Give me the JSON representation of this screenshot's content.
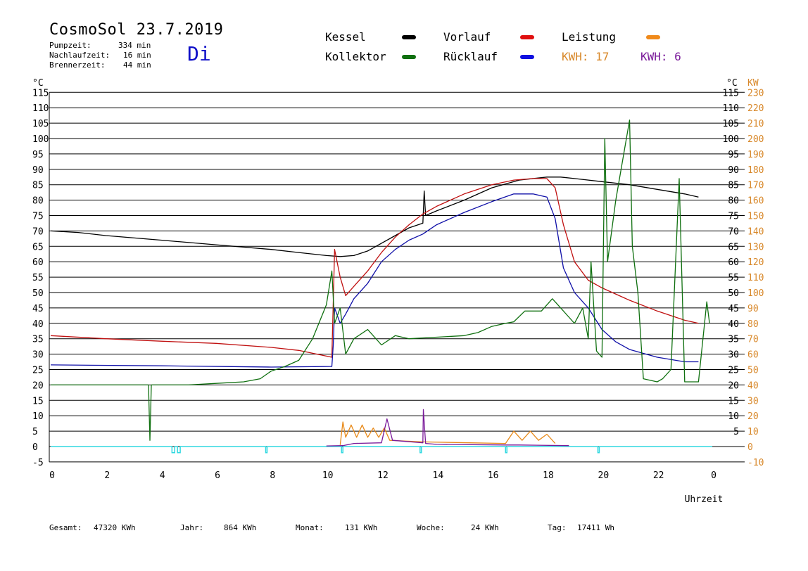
{
  "header": {
    "title": "CosmoSol 23.7.2019",
    "day": "Di",
    "stats": [
      {
        "label": "Pumpzeit:",
        "value": "334 min"
      },
      {
        "label": "Nachlaufzeit:",
        "value": "16 min"
      },
      {
        "label": "Brennerzeit:",
        "value": "44 min"
      }
    ]
  },
  "legend": {
    "kessel": "Kessel",
    "kollektor": "Kollektor",
    "vorlauf": "Vorlauf",
    "ruecklauf": "Rücklauf",
    "leistung": "Leistung",
    "kwh1": "KWH: 17",
    "kwh2": "KWH: 6"
  },
  "colors": {
    "kessel": "#000000",
    "kollektor": "#107010",
    "vorlauf": "#c01010",
    "ruecklauf": "#1010a8",
    "leistung": "#e88a1a",
    "purple": "#7a1a9a",
    "pump": "#30d8e0",
    "orange_text": "#d8882a"
  },
  "footer": [
    {
      "label": "Gesamt:",
      "value": "47320 KWh"
    },
    {
      "label": "Jahr:",
      "value": "864 KWh"
    },
    {
      "label": "Monat:",
      "value": "131 KWh"
    },
    {
      "label": "Woche:",
      "value": "24 KWh"
    },
    {
      "label": "Tag:",
      "value": "17411 Wh"
    }
  ],
  "chart_data": {
    "type": "line",
    "title": "CosmoSol 23.7.2019",
    "xlabel": "Uhrzeit",
    "ylabel_left": "°C",
    "ylabel_right_temp": "°C",
    "ylabel_right_power": "KW",
    "xlim": [
      0,
      24
    ],
    "ylim": [
      -5,
      115
    ],
    "y2lim": [
      -10,
      230
    ],
    "x_ticks": [
      "0",
      "2",
      "4",
      "6",
      "8",
      "10",
      "12",
      "14",
      "16",
      "18",
      "20",
      "22",
      "0"
    ],
    "y_ticks_left": [
      "-5",
      "0",
      "5",
      "10",
      "15",
      "20",
      "25",
      "30",
      "35",
      "40",
      "45",
      "50",
      "55",
      "60",
      "65",
      "70",
      "75",
      "80",
      "85",
      "90",
      "95",
      "100",
      "105",
      "110",
      "115"
    ],
    "y_ticks_right_temp": [
      "5",
      "10",
      "15",
      "20",
      "25",
      "30",
      "35",
      "40",
      "45",
      "50",
      "55",
      "60",
      "65",
      "70",
      "75",
      "80",
      "85",
      "90",
      "95",
      "100",
      "105",
      "110",
      "115"
    ],
    "y_ticks_right_power": [
      "-10",
      "0",
      "10",
      "20",
      "30",
      "40",
      "50",
      "60",
      "70",
      "80",
      "90",
      "100",
      "110",
      "120",
      "130",
      "140",
      "150",
      "160",
      "170",
      "180",
      "190",
      "200",
      "210",
      "220",
      "230"
    ],
    "grid": "horizontal",
    "series": [
      {
        "name": "Kessel",
        "color": "#000000",
        "points": [
          [
            0,
            70
          ],
          [
            1,
            69.5
          ],
          [
            2,
            68.5
          ],
          [
            4,
            67
          ],
          [
            6,
            65.5
          ],
          [
            8,
            64
          ],
          [
            9,
            63
          ],
          [
            10,
            62
          ],
          [
            10.5,
            61.7
          ],
          [
            11,
            62
          ],
          [
            11.5,
            63.5
          ],
          [
            12,
            66
          ],
          [
            12.5,
            68.5
          ],
          [
            13,
            71
          ],
          [
            13.5,
            72.5
          ],
          [
            13.55,
            83
          ],
          [
            13.6,
            75
          ],
          [
            14,
            76.5
          ],
          [
            15,
            80
          ],
          [
            16,
            84
          ],
          [
            17,
            86.5
          ],
          [
            18,
            87.5
          ],
          [
            18.5,
            87.5
          ],
          [
            19,
            87
          ],
          [
            20,
            86
          ],
          [
            21,
            85
          ],
          [
            22,
            83.5
          ],
          [
            23,
            82
          ],
          [
            23.5,
            81
          ]
        ]
      },
      {
        "name": "Vorlauf",
        "color": "#c01010",
        "points": [
          [
            0,
            36
          ],
          [
            2,
            35
          ],
          [
            4,
            34.2
          ],
          [
            6,
            33.5
          ],
          [
            8,
            32.2
          ],
          [
            9,
            31.2
          ],
          [
            10.2,
            29
          ],
          [
            10.3,
            64
          ],
          [
            10.5,
            55
          ],
          [
            10.7,
            49
          ],
          [
            11,
            52
          ],
          [
            11.5,
            57
          ],
          [
            12,
            63
          ],
          [
            12.5,
            68
          ],
          [
            13,
            72
          ],
          [
            13.5,
            75.5
          ],
          [
            14,
            78
          ],
          [
            15,
            82
          ],
          [
            16,
            85
          ],
          [
            16.8,
            86.5
          ],
          [
            17.5,
            87
          ],
          [
            18,
            87
          ],
          [
            18.3,
            84
          ],
          [
            18.6,
            72
          ],
          [
            19,
            60
          ],
          [
            19.5,
            54
          ],
          [
            20,
            51.5
          ],
          [
            21,
            47.5
          ],
          [
            22,
            44
          ],
          [
            23,
            41
          ],
          [
            23.5,
            40
          ]
        ]
      },
      {
        "name": "Rücklauf",
        "color": "#1010a8",
        "points": [
          [
            0,
            26.5
          ],
          [
            4,
            26.2
          ],
          [
            8,
            25.8
          ],
          [
            10.2,
            26
          ],
          [
            10.25,
            33
          ],
          [
            10.3,
            45
          ],
          [
            10.5,
            40
          ],
          [
            10.7,
            43
          ],
          [
            11,
            48
          ],
          [
            11.5,
            53
          ],
          [
            12,
            60
          ],
          [
            12.5,
            64
          ],
          [
            13,
            67
          ],
          [
            13.5,
            69
          ],
          [
            14,
            72
          ],
          [
            15,
            76
          ],
          [
            16,
            79.5
          ],
          [
            16.8,
            82
          ],
          [
            17.5,
            82
          ],
          [
            18,
            81
          ],
          [
            18.3,
            74
          ],
          [
            18.6,
            58
          ],
          [
            19,
            50
          ],
          [
            19.5,
            45
          ],
          [
            20,
            38
          ],
          [
            20.5,
            34
          ],
          [
            21,
            31.5
          ],
          [
            22,
            29
          ],
          [
            23,
            27.5
          ],
          [
            23.5,
            27.5
          ]
        ]
      },
      {
        "name": "Kollektor",
        "color": "#107010",
        "points": [
          [
            0,
            20
          ],
          [
            3.55,
            20
          ],
          [
            3.6,
            2
          ],
          [
            3.65,
            20
          ],
          [
            5,
            20
          ],
          [
            6,
            20.5
          ],
          [
            7,
            21
          ],
          [
            7.6,
            22
          ],
          [
            8,
            24.5
          ],
          [
            8.5,
            26
          ],
          [
            9,
            28
          ],
          [
            9.5,
            35
          ],
          [
            10,
            46
          ],
          [
            10.2,
            57
          ],
          [
            10.3,
            40
          ],
          [
            10.5,
            45
          ],
          [
            10.7,
            30
          ],
          [
            11,
            35
          ],
          [
            11.5,
            38
          ],
          [
            12,
            33
          ],
          [
            12.5,
            36
          ],
          [
            13,
            35
          ],
          [
            14,
            35.5
          ],
          [
            15,
            36
          ],
          [
            15.5,
            37
          ],
          [
            16,
            39
          ],
          [
            16.5,
            40
          ],
          [
            16.8,
            40.5
          ],
          [
            17.2,
            44
          ],
          [
            17.8,
            44
          ],
          [
            18.2,
            48
          ],
          [
            18.5,
            45
          ],
          [
            18.8,
            42
          ],
          [
            19,
            40
          ],
          [
            19.3,
            45
          ],
          [
            19.5,
            35
          ],
          [
            19.6,
            60
          ],
          [
            19.8,
            31
          ],
          [
            20,
            29
          ],
          [
            20.1,
            100
          ],
          [
            20.2,
            60
          ],
          [
            20.5,
            80
          ],
          [
            21,
            106
          ],
          [
            21.1,
            65
          ],
          [
            21.3,
            50
          ],
          [
            21.5,
            22
          ],
          [
            22,
            21
          ],
          [
            22.2,
            22
          ],
          [
            22.5,
            25
          ],
          [
            22.8,
            87
          ],
          [
            23,
            21
          ],
          [
            23.5,
            21
          ],
          [
            23.8,
            47
          ],
          [
            23.9,
            40
          ]
        ]
      },
      {
        "name": "Leistung",
        "color": "#e88a1a",
        "points": [
          [
            10.5,
            0.5
          ],
          [
            10.6,
            8
          ],
          [
            10.7,
            3
          ],
          [
            10.9,
            7
          ],
          [
            11.1,
            3
          ],
          [
            11.3,
            7
          ],
          [
            11.5,
            3
          ],
          [
            11.7,
            6
          ],
          [
            11.9,
            3
          ],
          [
            12.1,
            6
          ],
          [
            12.3,
            2
          ],
          [
            13.5,
            1.5
          ],
          [
            16.5,
            1
          ],
          [
            16.8,
            5
          ],
          [
            17.1,
            2
          ],
          [
            17.4,
            5
          ],
          [
            17.7,
            2
          ],
          [
            18,
            4
          ],
          [
            18.3,
            1
          ]
        ]
      },
      {
        "name": "Leistung (Brenner)",
        "color": "#7a1a9a",
        "points": [
          [
            10,
            0.2
          ],
          [
            10.6,
            0.3
          ],
          [
            11,
            1
          ],
          [
            12,
            1.2
          ],
          [
            12.2,
            9
          ],
          [
            12.4,
            2
          ],
          [
            13.5,
            1.2
          ],
          [
            13.52,
            12
          ],
          [
            13.6,
            1
          ],
          [
            14,
            0.7
          ],
          [
            16.5,
            0.5
          ],
          [
            17,
            0.5
          ],
          [
            18.8,
            0.3
          ]
        ]
      }
    ],
    "pump_pulses": [
      [
        4.4,
        4.5
      ],
      [
        4.6,
        4.7
      ],
      [
        7.8,
        7.85
      ],
      [
        10.55,
        10.6
      ],
      [
        13.4,
        13.45
      ],
      [
        16.5,
        16.55
      ],
      [
        19.85,
        19.9
      ]
    ]
  }
}
